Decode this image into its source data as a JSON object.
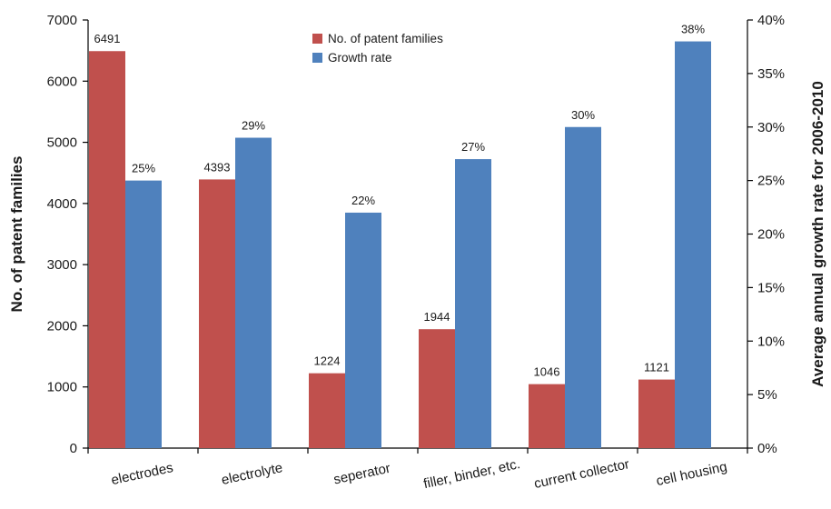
{
  "chart_data": {
    "type": "bar",
    "title": "",
    "categories": [
      "electrodes",
      "electrolyte",
      "seperator",
      "filler, binder, etc.",
      "current collector",
      "cell housing"
    ],
    "series": [
      {
        "name": "No. of patent families",
        "axis": "left",
        "color": "#c0504d",
        "values": [
          6491,
          4393,
          1224,
          1944,
          1046,
          1121
        ],
        "labels": [
          "6491",
          "4393",
          "1224",
          "1944",
          "1046",
          "1121"
        ]
      },
      {
        "name": "Growth rate",
        "axis": "right",
        "color": "#4f81bd",
        "values": [
          0.25,
          0.29,
          0.22,
          0.27,
          0.3,
          0.38
        ],
        "labels": [
          "25%",
          "29%",
          "22%",
          "27%",
          "30%",
          "38%"
        ]
      }
    ],
    "y_left": {
      "label": "No. of patent families",
      "ylim": [
        0,
        7000
      ],
      "ticks": [
        0,
        1000,
        2000,
        3000,
        4000,
        5000,
        6000,
        7000
      ],
      "tick_labels": [
        "0",
        "1000",
        "2000",
        "3000",
        "4000",
        "5000",
        "6000",
        "7000"
      ]
    },
    "y_right": {
      "label": "Average annual growth rate for 2006-2010",
      "ylim": [
        0,
        0.4
      ],
      "ticks": [
        0,
        0.05,
        0.1,
        0.15,
        0.2,
        0.25,
        0.3,
        0.35,
        0.4
      ],
      "tick_labels": [
        "0%",
        "5%",
        "10%",
        "15%",
        "20%",
        "25%",
        "30%",
        "35%",
        "40%"
      ]
    },
    "xlabel": "",
    "legend_position": "top-center",
    "grid": false
  }
}
